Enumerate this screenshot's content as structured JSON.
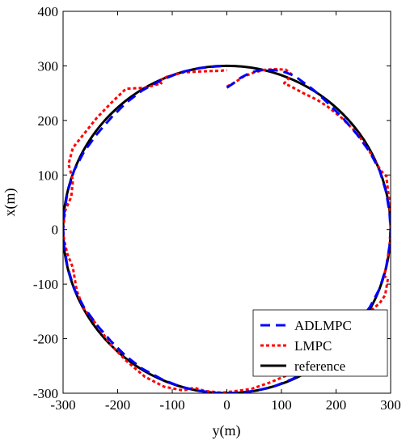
{
  "chart_data": {
    "type": "line",
    "title": "",
    "xlabel": "y(m)",
    "ylabel": "x(m)",
    "xlim": [
      -300,
      300
    ],
    "ylim": [
      -300,
      400
    ],
    "xticks": [
      -300,
      -200,
      -100,
      0,
      100,
      200,
      300
    ],
    "yticks": [
      -300,
      -200,
      -100,
      0,
      100,
      200,
      300,
      400
    ],
    "grid": false,
    "legend_position": "bottom-right",
    "series": [
      {
        "name": "ADLMPC",
        "color": "#0000ff",
        "style": "dashed",
        "x": [
          0,
          12,
          25,
          40,
          55,
          72,
          90,
          108,
          125,
          140,
          160,
          185,
          212,
          238,
          262,
          280,
          292,
          298,
          300,
          298,
          292,
          280,
          262,
          238,
          212,
          185,
          155,
          120,
          85,
          50,
          20,
          0,
          -20,
          -50,
          -85,
          -120,
          -155,
          -185,
          -212,
          -238,
          -262,
          -280,
          -292,
          -298,
          -300,
          -298,
          -292,
          -280,
          -262,
          -238,
          -212,
          -185,
          -155,
          -120,
          -85,
          -50,
          -20,
          0
        ],
        "y": [
          260,
          268,
          278,
          286,
          291,
          293,
          292,
          288,
          281,
          270,
          255,
          232,
          205,
          175,
          142,
          108,
          68,
          30,
          0,
          -30,
          -68,
          -108,
          -142,
          -175,
          -205,
          -232,
          -255,
          -274,
          -288,
          -296,
          -299,
          -300,
          -299,
          -296,
          -288,
          -274,
          -255,
          -232,
          -205,
          -175,
          -142,
          -108,
          -68,
          -30,
          0,
          30,
          68,
          108,
          142,
          175,
          205,
          232,
          255,
          274,
          288,
          296,
          299,
          300
        ]
      },
      {
        "name": "LMPC",
        "color": "#ff0000",
        "style": "dotted",
        "x": [
          0,
          15,
          30,
          50,
          70,
          90,
          108,
          118,
          112,
          105,
          118,
          140,
          165,
          185,
          210,
          240,
          262,
          282,
          292,
          298,
          300,
          298,
          292,
          288,
          295,
          290,
          280,
          262,
          238,
          212,
          185,
          150,
          115,
          80,
          45,
          10,
          -10,
          -40,
          -60,
          -80,
          -115,
          -150,
          -185,
          -212,
          -238,
          -258,
          -262,
          -275,
          -282,
          -292,
          -298,
          -300,
          -296,
          -285,
          -282,
          -290,
          -282,
          -262,
          -238,
          -212,
          -185,
          -150,
          -120,
          -125,
          -110,
          -80,
          -45,
          -10,
          -5,
          0
        ],
        "y": [
          262,
          270,
          280,
          288,
          293,
          294,
          293,
          285,
          276,
          268,
          262,
          250,
          238,
          225,
          205,
          175,
          142,
          108,
          98,
          50,
          0,
          -30,
          -68,
          -85,
          -90,
          -120,
          -135,
          -150,
          -170,
          -205,
          -232,
          -255,
          -265,
          -280,
          -292,
          -297,
          -299,
          -296,
          -290,
          -295,
          -288,
          -270,
          -240,
          -212,
          -175,
          -150,
          -145,
          -112,
          -70,
          -45,
          -20,
          0,
          35,
          60,
          90,
          120,
          150,
          175,
          205,
          232,
          258,
          260,
          268,
          272,
          280,
          288,
          290,
          291,
          292,
          292
        ]
      },
      {
        "name": "reference",
        "color": "#000000",
        "style": "solid",
        "circle": {
          "center_x": 0,
          "center_y": 0,
          "radius": 300
        }
      }
    ]
  }
}
